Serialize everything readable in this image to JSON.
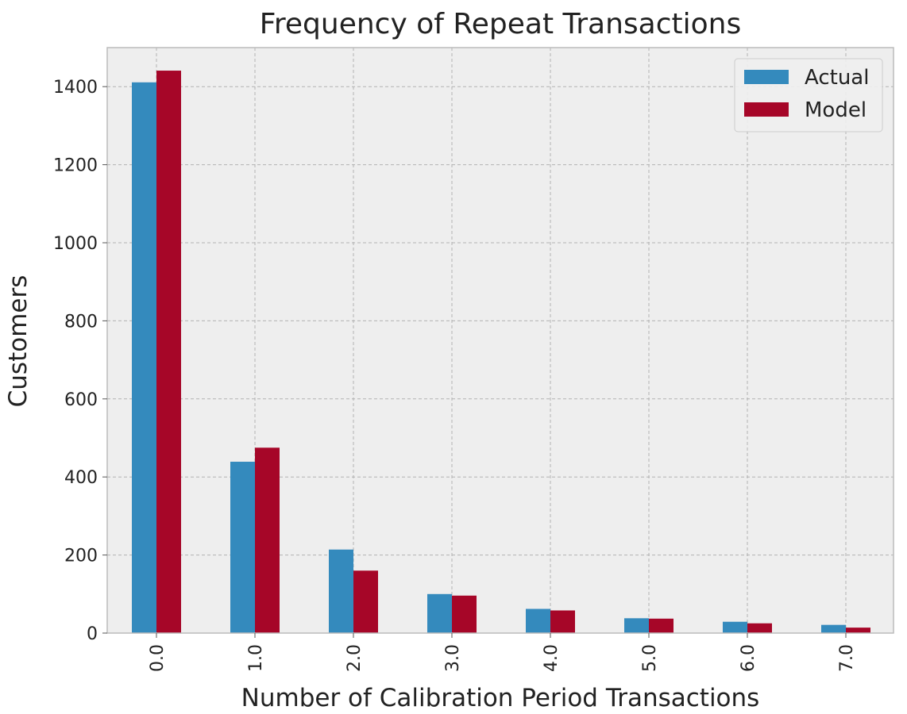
{
  "chart_data": {
    "type": "bar",
    "title": "Frequency of Repeat Transactions",
    "xlabel": "Number of Calibration Period Transactions",
    "ylabel": "Customers",
    "categories": [
      "0.0",
      "1.0",
      "2.0",
      "3.0",
      "4.0",
      "5.0",
      "6.0",
      "7.0"
    ],
    "series": [
      {
        "name": "Actual",
        "color": "#348abd",
        "values": [
          1411,
          439,
          214,
          100,
          62,
          38,
          29,
          21
        ]
      },
      {
        "name": "Model",
        "color": "#a60628",
        "values": [
          1441,
          475,
          160,
          96,
          58,
          37,
          25,
          14
        ]
      }
    ],
    "ylim": [
      0,
      1500
    ],
    "yticks": [
      0,
      200,
      400,
      600,
      800,
      1000,
      1200,
      1400
    ],
    "grid": true,
    "legend_position": "top-right",
    "background_color": "#eeeeee"
  }
}
